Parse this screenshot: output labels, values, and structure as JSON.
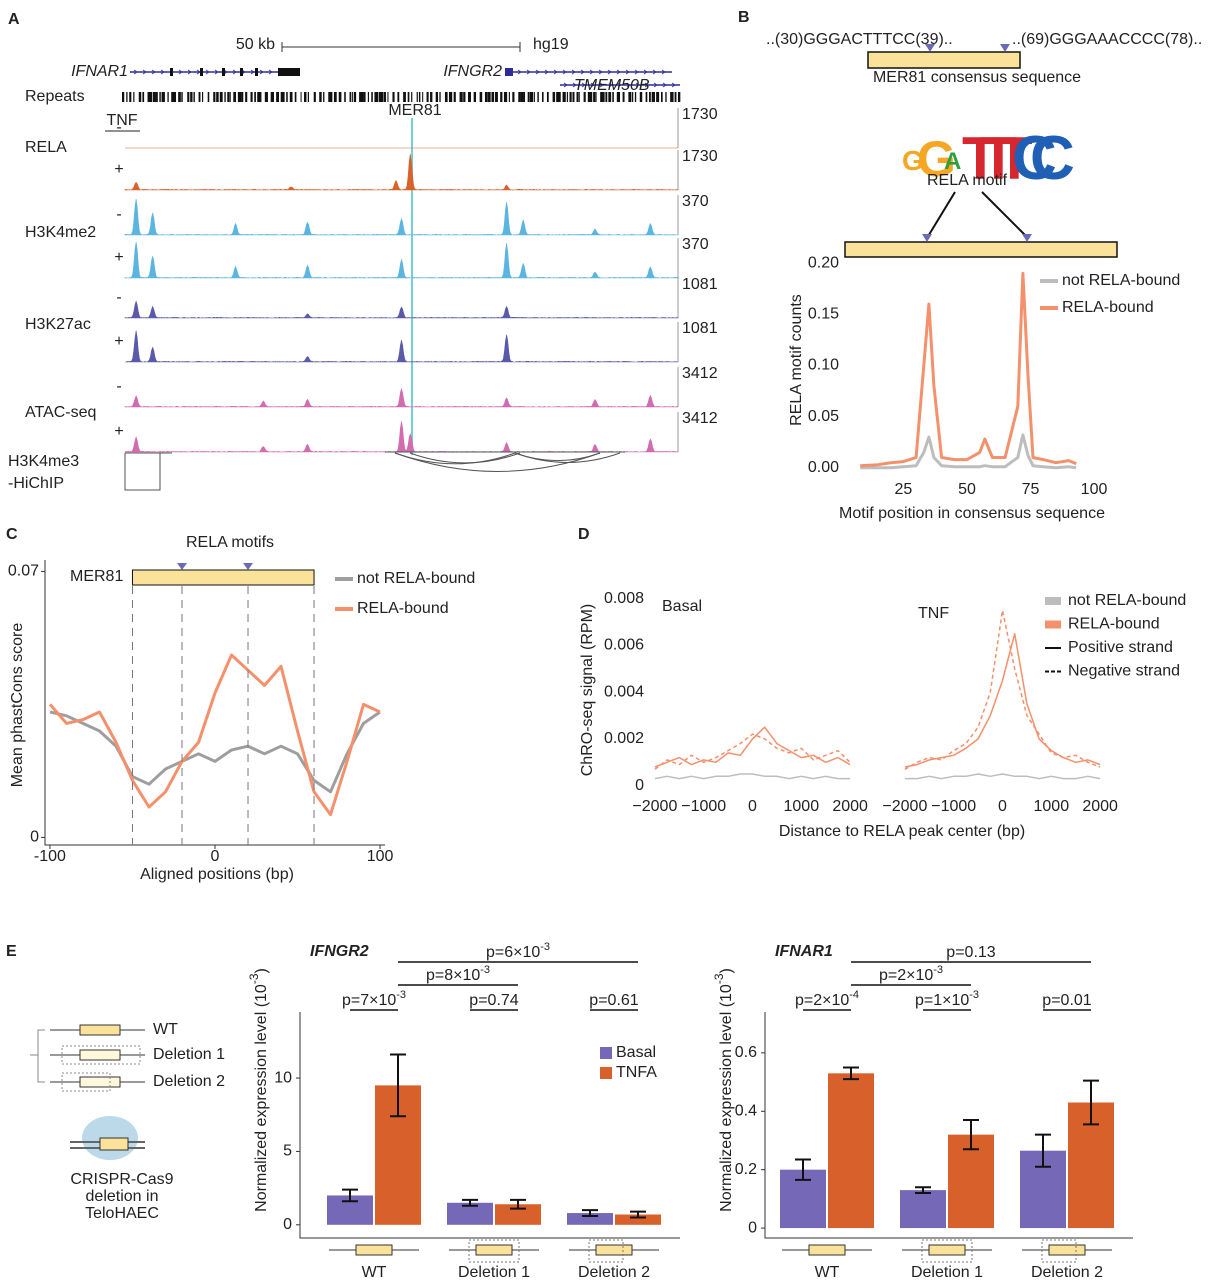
{
  "panels": [
    "A",
    "B",
    "C",
    "D",
    "E"
  ],
  "genome_browser": {
    "scale": "50 kb",
    "assembly": "hg19",
    "genes": [
      "IFNAR1",
      "IFNGR2",
      "TMEM50B"
    ],
    "repeats": "Repeats",
    "element": "MER81",
    "treatment": "TNF",
    "tracks": [
      {
        "name": "RELA",
        "signs": [
          "-",
          "+"
        ],
        "scales": [
          1730,
          1730
        ]
      },
      {
        "name": "H3K4me2",
        "signs": [
          "-",
          "+"
        ],
        "scales": [
          370,
          370
        ]
      },
      {
        "name": "H3K27ac",
        "signs": [
          "-",
          "+"
        ],
        "scales": [
          1081,
          1081
        ]
      },
      {
        "name": "ATAC-seq",
        "signs": [
          "-",
          "+"
        ],
        "scales": [
          3412,
          3412
        ]
      }
    ],
    "hichip": [
      "H3K4me3",
      "-HiChIP"
    ]
  },
  "motif_schematic": {
    "site1": "..(30)GGGACTTTCC(39)..",
    "site2": "..(69)GGGAAACCCC(78)..",
    "consensus": "MER81 consensus sequence",
    "logo": "GGATTTCC",
    "motif": "RELA motif"
  },
  "chart_data": [
    {
      "type": "line",
      "x": [
        8,
        15,
        20,
        25,
        30,
        33,
        35,
        37,
        40,
        45,
        50,
        55,
        57,
        60,
        65,
        70,
        72,
        74,
        76,
        80,
        85,
        90,
        93
      ],
      "series": [
        {
          "name": "not RELA-bound",
          "color": "#bdbdbd",
          "values": [
            0,
            0,
            0,
            0.001,
            0.002,
            0.015,
            0.03,
            0.01,
            0.002,
            0.001,
            0.001,
            0.001,
            0.002,
            0.001,
            0.001,
            0.01,
            0.032,
            0.012,
            0.002,
            0.001,
            0,
            0.001,
            0
          ]
        },
        {
          "name": "RELA-bound",
          "color": "#f4906b",
          "values": [
            0.002,
            0.003,
            0.005,
            0.006,
            0.01,
            0.1,
            0.16,
            0.08,
            0.01,
            0.008,
            0.008,
            0.015,
            0.028,
            0.01,
            0.01,
            0.06,
            0.19,
            0.09,
            0.01,
            0.008,
            0.005,
            0.007,
            0.004
          ]
        }
      ],
      "xlim": [
        2,
        105.5
      ],
      "ylim": [
        -0.01,
        0.208
      ],
      "xticks": [
        25,
        50,
        75,
        100
      ],
      "yticks": [
        {
          "value": 0,
          "label": "0.00"
        },
        {
          "value": 0.05,
          "label": "0.05"
        },
        {
          "value": 0.1,
          "label": "0.10"
        },
        {
          "value": 0.15,
          "label": "0.15"
        },
        {
          "value": 0.2,
          "label": "0.20"
        }
      ],
      "xlabel": "Motif position in consensus sequence",
      "ylabel": "RELA motif counts"
    },
    {
      "type": "line",
      "x": [
        -100,
        -90,
        -80,
        -70,
        -60,
        -50,
        -40,
        -30,
        -20,
        -10,
        0,
        10,
        20,
        30,
        40,
        50,
        60,
        70,
        80,
        90,
        100
      ],
      "series": [
        {
          "name": "not RELA-bound",
          "color": "#9e9e9e",
          "values": [
            0.033,
            0.032,
            0.03,
            0.028,
            0.024,
            0.016,
            0.014,
            0.018,
            0.02,
            0.022,
            0.02,
            0.023,
            0.024,
            0.022,
            0.024,
            0.022,
            0.015,
            0.012,
            0.022,
            0.03,
            0.033
          ]
        },
        {
          "name": "RELA-bound",
          "color": "#f4906b",
          "values": [
            0.035,
            0.03,
            0.031,
            0.033,
            0.025,
            0.015,
            0.008,
            0.012,
            0.02,
            0.025,
            0.038,
            0.048,
            0.044,
            0.04,
            0.045,
            0.028,
            0.012,
            0.006,
            0.02,
            0.035,
            0.033
          ]
        }
      ],
      "xlim": [
        -103,
        103
      ],
      "ylim": [
        -0.002,
        0.073
      ],
      "xticks": [
        -100,
        0,
        100
      ],
      "yticks": [
        0,
        0.07
      ],
      "xlabel": "Aligned positions (bp)",
      "ylabel": "Mean phastCons score",
      "feature": "MER81",
      "motif_label": "RELA motifs",
      "boundaries": [
        -50,
        -20,
        20,
        60
      ]
    },
    {
      "type": "line",
      "panel": "Basal",
      "x": [
        -2000,
        -1750,
        -1500,
        -1250,
        -1000,
        -750,
        -500,
        -250,
        0,
        250,
        500,
        750,
        1000,
        1250,
        1500,
        1750,
        2000
      ],
      "series": [
        {
          "color": "#bdbdbd",
          "dash": false,
          "values": [
            0.0003,
            0.0004,
            0.0003,
            0.0004,
            0.0003,
            0.0004,
            0.0004,
            0.0005,
            0.0005,
            0.0004,
            0.0004,
            0.0003,
            0.0004,
            0.0003,
            0.0004,
            0.0003,
            0.0003
          ]
        },
        {
          "color": "#f4906b",
          "dash": false,
          "values": [
            0.0008,
            0.001,
            0.0012,
            0.0009,
            0.0011,
            0.001,
            0.0014,
            0.0013,
            0.002,
            0.0025,
            0.0018,
            0.0015,
            0.0012,
            0.0013,
            0.001,
            0.0012,
            0.0009
          ]
        },
        {
          "color": "#f4906b",
          "dash": true,
          "values": [
            0.0007,
            0.0011,
            0.0009,
            0.0013,
            0.001,
            0.0012,
            0.0015,
            0.0018,
            0.0022,
            0.002,
            0.0016,
            0.0014,
            0.0016,
            0.0011,
            0.0013,
            0.0015,
            0.001
          ]
        }
      ],
      "xlim": [
        -2100,
        2100
      ],
      "ylim": [
        -0.0004,
        0.0088
      ],
      "xticks": [
        {
          "value": -2000,
          "label": "−2000"
        },
        {
          "value": -1000,
          "label": "−1000"
        },
        0,
        1000,
        2000
      ],
      "yticks": [
        0,
        0.002,
        0.004,
        0.006,
        0.008
      ],
      "ylabel": "ChRO-seq signal (RPM)",
      "xlabel": "Distance to RELA peak center (bp)"
    },
    {
      "type": "line",
      "panel": "TNF",
      "x": [
        -2000,
        -1750,
        -1500,
        -1250,
        -1000,
        -750,
        -500,
        -250,
        0,
        250,
        500,
        750,
        1000,
        1250,
        1500,
        1750,
        2000
      ],
      "series": [
        {
          "color": "#bdbdbd",
          "dash": false,
          "values": [
            0.0003,
            0.0003,
            0.0004,
            0.0003,
            0.0004,
            0.0004,
            0.0005,
            0.0004,
            0.0005,
            0.0004,
            0.0004,
            0.0003,
            0.0004,
            0.0003,
            0.0003,
            0.0004,
            0.0003
          ]
        },
        {
          "color": "#f4906b",
          "dash": false,
          "values": [
            0.0008,
            0.0009,
            0.0011,
            0.0012,
            0.0013,
            0.0016,
            0.002,
            0.003,
            0.0045,
            0.0065,
            0.0035,
            0.002,
            0.0015,
            0.0012,
            0.001,
            0.0011,
            0.0009
          ]
        },
        {
          "color": "#f4906b",
          "dash": true,
          "values": [
            0.0007,
            0.001,
            0.0012,
            0.0011,
            0.0015,
            0.0018,
            0.0025,
            0.004,
            0.0075,
            0.005,
            0.003,
            0.0022,
            0.0014,
            0.0012,
            0.0013,
            0.001,
            0.0008
          ]
        }
      ],
      "xlim": [
        -2100,
        2100
      ],
      "ylim": [
        -0.0004,
        0.0088
      ],
      "xticks": [
        {
          "value": -2000,
          "label": "−2000"
        },
        {
          "value": -1000,
          "label": "−1000"
        },
        0,
        1000,
        2000
      ],
      "legend": [
        {
          "label": "not RELA-bound",
          "color": "#bdbdbd"
        },
        {
          "label": "RELA-bound",
          "color": "#f4906b"
        },
        {
          "label": "Positive strand",
          "dash": false
        },
        {
          "label": "Negative strand",
          "dash": true
        }
      ]
    },
    {
      "type": "bar",
      "title": "IFNGR2",
      "categories": [
        "WT",
        "Deletion 1",
        "Deletion 2"
      ],
      "series": [
        {
          "name": "Basal",
          "color": "#7569b7",
          "values": [
            2.0,
            1.5,
            0.8
          ],
          "errors": [
            0.4,
            0.2,
            0.2
          ]
        },
        {
          "name": "TNFA",
          "color": "#d8612b",
          "values": [
            9.5,
            1.4,
            0.7
          ],
          "errors": [
            2.1,
            0.3,
            0.2
          ]
        }
      ],
      "ylim": [
        -0.9,
        14.5
      ],
      "yticks": [
        0,
        5,
        10
      ],
      "ylabel": {
        "text": "Normalized expression level (10",
        "sup": "-3",
        "tail": ")"
      },
      "pvalues": [
        {
          "text": "p=6×10",
          "sup": "-3"
        },
        {
          "text": "p=8×10",
          "sup": "-3"
        },
        {
          "text": "p=7×10",
          "sup": "-3"
        },
        "p=0.74",
        "p=0.61"
      ]
    },
    {
      "type": "bar",
      "title": "IFNAR1",
      "categories": [
        "WT",
        "Deletion 1",
        "Deletion 2"
      ],
      "series": [
        {
          "color": "#7569b7",
          "values": [
            0.2,
            0.13,
            0.265
          ],
          "errors": [
            0.035,
            0.01,
            0.055
          ]
        },
        {
          "color": "#d8612b",
          "values": [
            0.53,
            0.32,
            0.43
          ],
          "errors": [
            0.02,
            0.05,
            0.075
          ]
        }
      ],
      "ylim": [
        -0.034,
        0.74
      ],
      "yticks": [
        0,
        0.2,
        0.4,
        0.6
      ],
      "ylabel": {
        "text": "Normalized expression level (10",
        "sup": "-3",
        "tail": ")"
      },
      "pvalues": [
        "p=0.13",
        {
          "text": "p=2×10",
          "sup": "-3"
        },
        {
          "text": "p=2×10",
          "sup": "-4"
        },
        {
          "text": "p=1×10",
          "sup": "-3"
        },
        "p=0.01"
      ]
    }
  ],
  "deletion_schematic": {
    "constructs": [
      "WT",
      "Deletion 1",
      "Deletion 2"
    ],
    "method": [
      "CRISPR-Cas9",
      "deletion in",
      "TeloHAEC"
    ]
  }
}
